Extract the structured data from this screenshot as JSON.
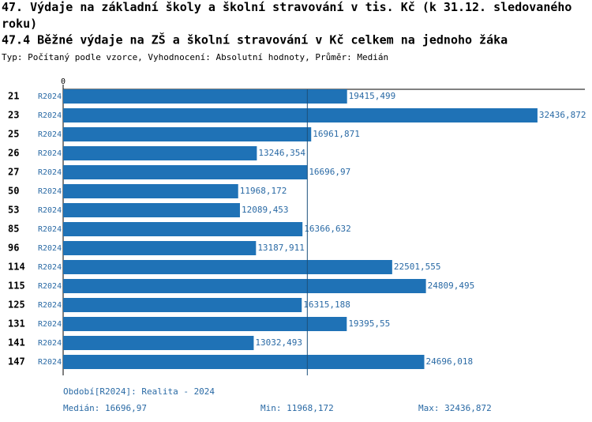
{
  "chart_data": {
    "type": "bar",
    "orientation": "horizontal",
    "title": "47. Výdaje na základní školy a školní stravování v tis. Kč (k 31.12. sledovaného roku)",
    "subtitle": "47.4 Běžné výdaje na ZŠ a školní stravování v Kč celkem na jednoho žáka",
    "description": "Typ: Počítaný podle vzorce, Vyhodnocení: Absolutní hodnoty, Průměr: Medián",
    "categories": [
      "21",
      "23",
      "25",
      "26",
      "27",
      "50",
      "53",
      "85",
      "96",
      "114",
      "115",
      "125",
      "131",
      "141",
      "147"
    ],
    "series": [
      {
        "name": "R2024",
        "color": "#1f72b6",
        "values": [
          19415.499,
          32436.872,
          16961.871,
          13246.354,
          16696.97,
          11968.172,
          12089.453,
          16366.632,
          13187.911,
          22501.555,
          24809.495,
          16315.188,
          19395.55,
          13032.493,
          24696.018
        ],
        "value_labels": [
          "19415,499",
          "32436,872",
          "16961,871",
          "13246,354",
          "16696,97",
          "11968,172",
          "12089,453",
          "16366,632",
          "13187,911",
          "22501,555",
          "24809,495",
          "16315,188",
          "19395,55",
          "13032,493",
          "24696,018"
        ]
      }
    ],
    "xlim": [
      0,
      35680
    ],
    "xticks": [
      0
    ],
    "period_note": "Období[R2024]: Realita - 2024",
    "median": {
      "value": 16696.97,
      "label": "Medián: 16696,97"
    },
    "min_label": "Min: 11968,172",
    "max_label": "Max: 32436,872"
  }
}
